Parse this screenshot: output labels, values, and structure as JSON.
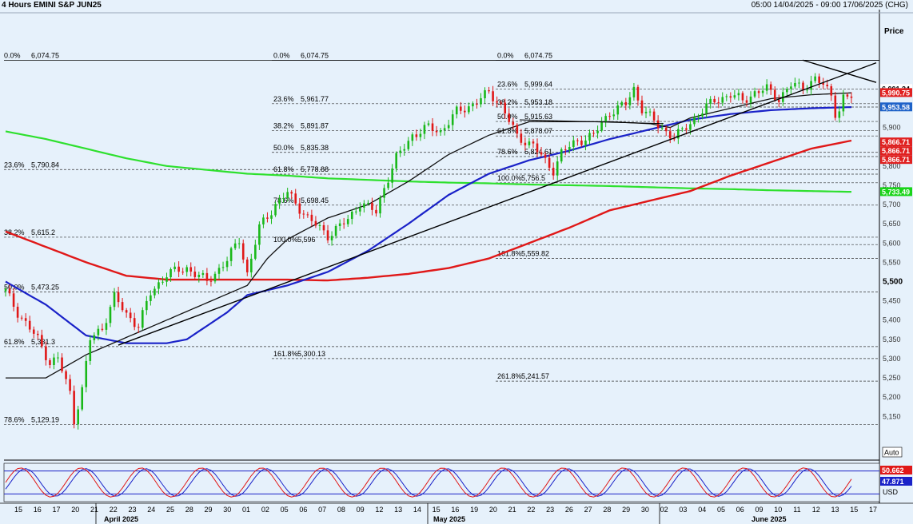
{
  "header": {
    "title": "4 Hours EMINI S&P JUN25",
    "range": "05:00 14/04/2025 - 09:00 17/06/2025 (CHG)"
  },
  "axis": {
    "price_label": "Price",
    "auto_label": "Auto",
    "currency_label": "USD"
  },
  "chart_data": {
    "type": "candlestick",
    "title": "4 Hours EMINI S&P JUN25",
    "ylabel": "Price",
    "ylim": [
      5100,
      6100
    ],
    "y_ticks": [
      "5,150",
      "5,200",
      "5,250",
      "5,300",
      "5,350",
      "5,400",
      "5,450",
      "5,500",
      "5,550",
      "5,600",
      "5,650",
      "5,700",
      "5,750",
      "5,800",
      "5,850",
      "5,900",
      "5,950"
    ],
    "x_ticks": [
      "15",
      "16",
      "17",
      "20",
      "21",
      "22",
      "23",
      "24",
      "25",
      "28",
      "29",
      "30",
      "01",
      "02",
      "05",
      "06",
      "07",
      "08",
      "09",
      "12",
      "13",
      "14",
      "15",
      "16",
      "19",
      "20",
      "21",
      "22",
      "23",
      "26",
      "27",
      "28",
      "29",
      "30",
      "02",
      "03",
      "04",
      "05",
      "06",
      "09",
      "10",
      "11",
      "12",
      "13",
      "15",
      "17"
    ],
    "month_labels": [
      "April 2025",
      "May 2025",
      "June 2025"
    ],
    "price_labels": [
      {
        "text": "6,001.24",
        "price": 6001.24,
        "color": "#000000"
      },
      {
        "text": "5,990.75",
        "price": 5990.75,
        "color": "#e02020"
      },
      {
        "text": "5,953.58",
        "price": 5953.58,
        "color": "#1e62c8"
      },
      {
        "text": "5,866.71",
        "price": 5866.71,
        "color": "#e02020"
      },
      {
        "text": "5,866.71",
        "price": 5866.71,
        "color": "#e02020"
      },
      {
        "text": "5,866.71",
        "price": 5866.71,
        "color": "#e02020"
      },
      {
        "text": "5,733.49",
        "price": 5733.49,
        "color": "#19d419"
      }
    ],
    "bold_tick": "5,500",
    "fibonacci_sets": [
      {
        "name": "fib-left",
        "levels": [
          {
            "label": "0.0%",
            "value": "6,074.75",
            "price": 6074.75
          },
          {
            "label": "23.6%",
            "value": "5,790.84",
            "price": 5790.84
          },
          {
            "label": "38.2%",
            "value": "5,615.2",
            "price": 5615.2
          },
          {
            "label": "50.0%",
            "value": "5,473.25",
            "price": 5473.25
          },
          {
            "label": "61.8%",
            "value": "5,331.3",
            "price": 5331.3
          },
          {
            "label": "78.6%",
            "value": "5,129.19",
            "price": 5129.19
          }
        ]
      },
      {
        "name": "fib-mid",
        "levels": [
          {
            "label": "0.0%",
            "value": "6,074.75",
            "price": 6074.75
          },
          {
            "label": "23.6%",
            "value": "5,961.77",
            "price": 5961.77
          },
          {
            "label": "38.2%",
            "value": "5,891.87",
            "price": 5891.87
          },
          {
            "label": "50.0%",
            "value": "5,835.38",
            "price": 5835.38
          },
          {
            "label": "61.8%",
            "value": "5,778.88",
            "price": 5778.88
          },
          {
            "label": "78.6%",
            "value": "5,698.45",
            "price": 5698.45
          },
          {
            "label": "100.0%",
            "value": "5,596",
            "price": 5596
          },
          {
            "label": "161.8%",
            "value": "5,300.13",
            "price": 5300.13
          }
        ]
      },
      {
        "name": "fib-right",
        "levels": [
          {
            "label": "0.0%",
            "value": "6,074.75",
            "price": 6074.75
          },
          {
            "label": "23.6%",
            "value": "5,999.64",
            "price": 5999.64
          },
          {
            "label": "38.2%",
            "value": "5,953.18",
            "price": 5953.18
          },
          {
            "label": "50.0%",
            "value": "5,915.63",
            "price": 5915.63
          },
          {
            "label": "61.8%",
            "value": "5,878.07",
            "price": 5878.07
          },
          {
            "label": "78.6%",
            "value": "5,824.61",
            "price": 5824.61
          },
          {
            "label": "100.0%",
            "value": "5,756.5",
            "price": 5756.5
          },
          {
            "label": "161.8%",
            "value": "5,559.82",
            "price": 5559.82
          },
          {
            "label": "261.8%",
            "value": "5,241.57",
            "price": 5241.57
          }
        ]
      }
    ],
    "candle_anchors": [
      [
        0,
        5475
      ],
      [
        3,
        5420
      ],
      [
        8,
        5350
      ],
      [
        11,
        5290
      ],
      [
        13,
        5300
      ],
      [
        16,
        5210
      ],
      [
        17,
        5140
      ],
      [
        19,
        5220
      ],
      [
        21,
        5350
      ],
      [
        24,
        5380
      ],
      [
        27,
        5460
      ],
      [
        30,
        5415
      ],
      [
        33,
        5385
      ],
      [
        36,
        5470
      ],
      [
        40,
        5520
      ],
      [
        45,
        5535
      ],
      [
        50,
        5500
      ],
      [
        55,
        5555
      ],
      [
        58,
        5610
      ],
      [
        60,
        5520
      ],
      [
        63,
        5640
      ],
      [
        67,
        5700
      ],
      [
        70,
        5730
      ],
      [
        75,
        5665
      ],
      [
        80,
        5620
      ],
      [
        85,
        5660
      ],
      [
        88,
        5705
      ],
      [
        92,
        5680
      ],
      [
        94,
        5745
      ],
      [
        97,
        5820
      ],
      [
        101,
        5880
      ],
      [
        105,
        5900
      ],
      [
        108,
        5890
      ],
      [
        112,
        5940
      ],
      [
        116,
        5960
      ],
      [
        120,
        5990
      ],
      [
        123,
        5960
      ],
      [
        127,
        5875
      ],
      [
        131,
        5855
      ],
      [
        134,
        5810
      ],
      [
        136,
        5790
      ],
      [
        138,
        5835
      ],
      [
        142,
        5865
      ],
      [
        146,
        5880
      ],
      [
        150,
        5940
      ],
      [
        154,
        5960
      ],
      [
        156,
        6000
      ],
      [
        158,
        5950
      ],
      [
        162,
        5905
      ],
      [
        166,
        5875
      ],
      [
        168,
        5890
      ],
      [
        172,
        5935
      ],
      [
        176,
        5970
      ],
      [
        180,
        5985
      ],
      [
        183,
        5970
      ],
      [
        186,
        5990
      ],
      [
        189,
        6000
      ],
      [
        192,
        5975
      ],
      [
        195,
        6010
      ],
      [
        198,
        6005
      ],
      [
        201,
        6025
      ],
      [
        203,
        6010
      ],
      [
        205,
        5985
      ],
      [
        206,
        5940
      ],
      [
        207,
        5945
      ],
      [
        208,
        5975
      ],
      [
        210,
        5980
      ]
    ],
    "ema_black": [
      [
        0,
        5250
      ],
      [
        10,
        5250
      ],
      [
        20,
        5310
      ],
      [
        30,
        5355
      ],
      [
        40,
        5400
      ],
      [
        50,
        5445
      ],
      [
        60,
        5490
      ],
      [
        65,
        5560
      ],
      [
        70,
        5610
      ],
      [
        80,
        5665
      ],
      [
        90,
        5700
      ],
      [
        100,
        5760
      ],
      [
        110,
        5830
      ],
      [
        120,
        5880
      ],
      [
        130,
        5915
      ],
      [
        140,
        5915
      ],
      [
        150,
        5915
      ],
      [
        160,
        5910
      ],
      [
        165,
        5900
      ],
      [
        170,
        5925
      ],
      [
        180,
        5950
      ],
      [
        190,
        5975
      ],
      [
        200,
        5985
      ],
      [
        210,
        5990
      ]
    ],
    "ema_blue": [
      [
        0,
        5500
      ],
      [
        10,
        5440
      ],
      [
        20,
        5360
      ],
      [
        30,
        5340
      ],
      [
        40,
        5340
      ],
      [
        45,
        5350
      ],
      [
        55,
        5420
      ],
      [
        60,
        5465
      ],
      [
        70,
        5490
      ],
      [
        80,
        5525
      ],
      [
        90,
        5580
      ],
      [
        100,
        5650
      ],
      [
        110,
        5725
      ],
      [
        120,
        5780
      ],
      [
        130,
        5815
      ],
      [
        140,
        5840
      ],
      [
        150,
        5870
      ],
      [
        160,
        5895
      ],
      [
        170,
        5920
      ],
      [
        180,
        5935
      ],
      [
        190,
        5945
      ],
      [
        200,
        5950
      ],
      [
        210,
        5953
      ]
    ],
    "ema_red": [
      [
        0,
        5630
      ],
      [
        10,
        5590
      ],
      [
        20,
        5550
      ],
      [
        30,
        5515
      ],
      [
        40,
        5505
      ],
      [
        50,
        5505
      ],
      [
        60,
        5505
      ],
      [
        70,
        5505
      ],
      [
        80,
        5503
      ],
      [
        90,
        5510
      ],
      [
        100,
        5520
      ],
      [
        110,
        5535
      ],
      [
        120,
        5560
      ],
      [
        130,
        5600
      ],
      [
        140,
        5640
      ],
      [
        150,
        5685
      ],
      [
        160,
        5710
      ],
      [
        170,
        5735
      ],
      [
        180,
        5775
      ],
      [
        190,
        5810
      ],
      [
        200,
        5845
      ],
      [
        210,
        5866
      ]
    ],
    "ema_green": [
      [
        0,
        5890
      ],
      [
        10,
        5870
      ],
      [
        20,
        5845
      ],
      [
        30,
        5820
      ],
      [
        40,
        5800
      ],
      [
        50,
        5790
      ],
      [
        60,
        5780
      ],
      [
        70,
        5775
      ],
      [
        80,
        5768
      ],
      [
        90,
        5764
      ],
      [
        100,
        5760
      ],
      [
        110,
        5757
      ],
      [
        120,
        5755
      ],
      [
        130,
        5752
      ],
      [
        140,
        5750
      ],
      [
        150,
        5748
      ],
      [
        160,
        5745
      ],
      [
        170,
        5742
      ],
      [
        180,
        5740
      ],
      [
        190,
        5737
      ],
      [
        200,
        5735
      ],
      [
        210,
        5733
      ]
    ],
    "oscillator": {
      "readouts": [
        "50.662",
        "47.871"
      ],
      "overbought": 80,
      "oversold": 20
    }
  }
}
